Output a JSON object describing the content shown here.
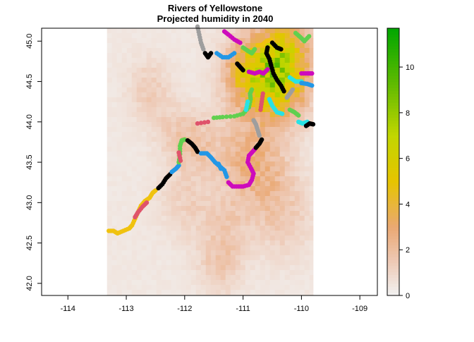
{
  "chart_data": {
    "type": "scatter",
    "title": "Rivers of Yellowstone",
    "subtitle": "Projected humidity in 2040",
    "xlabel": "",
    "ylabel": "",
    "xlim": [
      -114.45,
      -108.7
    ],
    "ylim": [
      41.85,
      45.16
    ],
    "x_ticks": [
      -114,
      -113,
      -112,
      -111,
      -110,
      -109
    ],
    "x_tick_labels": [
      "-114",
      "-113",
      "-112",
      "-111",
      "-110",
      "-109"
    ],
    "y_ticks": [
      42.0,
      42.5,
      43.0,
      43.5,
      44.0,
      44.5,
      45.0
    ],
    "y_tick_labels": [
      "42.0",
      "42.5",
      "43.0",
      "43.5",
      "44.0",
      "44.5",
      "45.0"
    ],
    "grid": false,
    "raster": {
      "name": "humidity",
      "x_range": [
        -113.33,
        -109.8
      ],
      "y_range": [
        41.85,
        45.16
      ],
      "background_value": 0.4,
      "hotspots": [
        {
          "x": -110.4,
          "y": 44.5,
          "value": 5.0,
          "spread": 0.35
        },
        {
          "x": -110.9,
          "y": 44.6,
          "value": 3.5,
          "spread": 0.3
        },
        {
          "x": -110.3,
          "y": 44.9,
          "value": 3.0,
          "spread": 0.3
        },
        {
          "x": -111.0,
          "y": 43.6,
          "value": 1.6,
          "spread": 0.35
        },
        {
          "x": -110.6,
          "y": 43.3,
          "value": 1.3,
          "spread": 0.35
        },
        {
          "x": -111.8,
          "y": 43.7,
          "value": 1.3,
          "spread": 0.25
        },
        {
          "x": -110.3,
          "y": 42.8,
          "value": 0.9,
          "spread": 0.35
        },
        {
          "x": -112.0,
          "y": 43.0,
          "value": 0.8,
          "spread": 0.3
        },
        {
          "x": -111.3,
          "y": 42.7,
          "value": 1.0,
          "spread": 0.3
        },
        {
          "x": -111.4,
          "y": 42.2,
          "value": 1.0,
          "spread": 0.25
        },
        {
          "x": -112.6,
          "y": 44.4,
          "value": 1.0,
          "spread": 0.25
        },
        {
          "x": -112.2,
          "y": 43.9,
          "value": 0.8,
          "spread": 0.25
        }
      ]
    },
    "colorbar": {
      "min": 0,
      "max": 11.7,
      "ticks": [
        0,
        2,
        4,
        6,
        8,
        10
      ],
      "tick_labels": [
        "0",
        "2",
        "4",
        "6",
        "8",
        "10"
      ],
      "stops": [
        {
          "value": 0,
          "color": "#f2f2f2"
        },
        {
          "value": 1.5,
          "color": "#eec9b5"
        },
        {
          "value": 3.0,
          "color": "#eaa873"
        },
        {
          "value": 5.0,
          "color": "#e6c400"
        },
        {
          "value": 7.0,
          "color": "#c2d600"
        },
        {
          "value": 9.0,
          "color": "#6bbd00"
        },
        {
          "value": 11.7,
          "color": "#00a600"
        }
      ]
    },
    "series": [
      {
        "color": "#f0c20f",
        "points": [
          [
            -113.3,
            42.65
          ],
          [
            -113.22,
            42.65
          ],
          [
            -113.15,
            42.62
          ],
          [
            -113.05,
            42.65
          ],
          [
            -112.95,
            42.68
          ],
          [
            -112.9,
            42.72
          ],
          [
            -112.85,
            42.8
          ],
          [
            -112.8,
            42.88
          ],
          [
            -112.75,
            42.96
          ],
          [
            -112.68,
            43.02
          ],
          [
            -112.6,
            43.06
          ],
          [
            -112.55,
            43.12
          ],
          [
            -112.5,
            43.15
          ]
        ]
      },
      {
        "color": "#df536b",
        "points": [
          [
            -112.85,
            42.82
          ],
          [
            -112.8,
            42.88
          ],
          [
            -112.72,
            42.95
          ],
          [
            -112.65,
            43.0
          ]
        ]
      },
      {
        "color": "#000000",
        "points": [
          [
            -112.45,
            43.18
          ],
          [
            -112.38,
            43.23
          ],
          [
            -112.32,
            43.3
          ],
          [
            -112.25,
            43.35
          ]
        ]
      },
      {
        "color": "#2297e6",
        "points": [
          [
            -112.22,
            43.38
          ],
          [
            -112.15,
            43.42
          ],
          [
            -112.1,
            43.46
          ]
        ]
      },
      {
        "color": "#61d04f",
        "points": [
          [
            -112.1,
            43.5
          ],
          [
            -112.08,
            43.6
          ],
          [
            -112.08,
            43.7
          ],
          [
            -112.05,
            43.77
          ],
          [
            -112.0,
            43.78
          ]
        ]
      },
      {
        "color": "#000000",
        "points": [
          [
            -111.95,
            43.77
          ],
          [
            -111.88,
            43.73
          ],
          [
            -111.82,
            43.68
          ],
          [
            -111.78,
            43.63
          ]
        ]
      },
      {
        "color": "#2297e6",
        "points": [
          [
            -111.72,
            43.61
          ],
          [
            -111.62,
            43.61
          ],
          [
            -111.55,
            43.56
          ],
          [
            -111.48,
            43.5
          ],
          [
            -111.4,
            43.45
          ],
          [
            -111.32,
            43.4
          ],
          [
            -111.28,
            43.32
          ]
        ]
      },
      {
        "color": "#cd0bbc",
        "points": [
          [
            -111.25,
            43.25
          ],
          [
            -111.18,
            43.2
          ],
          [
            -111.08,
            43.2
          ],
          [
            -111.0,
            43.2
          ],
          [
            -110.9,
            43.22
          ],
          [
            -110.85,
            43.28
          ],
          [
            -110.82,
            43.36
          ],
          [
            -110.86,
            43.42
          ],
          [
            -110.92,
            43.5
          ],
          [
            -110.9,
            43.58
          ],
          [
            -110.85,
            43.62
          ],
          [
            -110.8,
            43.66
          ]
        ]
      },
      {
        "color": "#000000",
        "points": [
          [
            -110.78,
            43.68
          ],
          [
            -110.72,
            43.73
          ],
          [
            -110.68,
            43.78
          ]
        ]
      },
      {
        "color": "#9e9e9e",
        "points": [
          [
            -110.72,
            43.83
          ],
          [
            -110.75,
            43.9
          ],
          [
            -110.78,
            43.97
          ],
          [
            -110.82,
            44.02
          ]
        ]
      },
      {
        "color": "#61d04f",
        "points": [
          [
            -111.5,
            44.05
          ],
          [
            -111.35,
            44.06
          ],
          [
            -111.15,
            44.07
          ],
          [
            -111.0,
            44.1
          ],
          [
            -110.9,
            44.18
          ],
          [
            -110.87,
            44.28
          ],
          [
            -110.88,
            44.35
          ],
          [
            -110.85,
            44.4
          ]
        ]
      },
      {
        "color": "#df536b",
        "points": [
          [
            -111.6,
            44.0
          ],
          [
            -111.78,
            43.98
          ]
        ]
      },
      {
        "color": "#28e2e5",
        "points": [
          [
            -110.95,
            44.15
          ],
          [
            -110.92,
            44.25
          ]
        ]
      },
      {
        "color": "#df536b",
        "points": [
          [
            -110.7,
            44.15
          ],
          [
            -110.68,
            44.25
          ],
          [
            -110.66,
            44.35
          ]
        ]
      },
      {
        "color": "#28e2e5",
        "points": [
          [
            -110.55,
            44.28
          ],
          [
            -110.5,
            44.2
          ],
          [
            -110.42,
            44.12
          ],
          [
            -110.33,
            44.1
          ]
        ]
      },
      {
        "color": "#000000",
        "points": [
          [
            -110.3,
            44.38
          ],
          [
            -110.35,
            44.45
          ],
          [
            -110.42,
            44.52
          ],
          [
            -110.48,
            44.6
          ],
          [
            -110.52,
            44.7
          ],
          [
            -110.55,
            44.78
          ],
          [
            -110.6,
            44.85
          ],
          [
            -110.58,
            44.92
          ]
        ]
      },
      {
        "color": "#9e9e9e",
        "points": [
          [
            -111.78,
            45.18
          ],
          [
            -111.75,
            45.08
          ],
          [
            -111.72,
            44.98
          ],
          [
            -111.68,
            44.9
          ]
        ]
      },
      {
        "color": "#000000",
        "points": [
          [
            -111.65,
            44.85
          ],
          [
            -111.6,
            44.8
          ],
          [
            -111.55,
            44.85
          ]
        ]
      },
      {
        "color": "#2297e6",
        "points": [
          [
            -111.45,
            44.85
          ],
          [
            -111.35,
            44.8
          ],
          [
            -111.25,
            44.8
          ],
          [
            -111.15,
            44.85
          ]
        ]
      },
      {
        "color": "#cd0bbc",
        "points": [
          [
            -111.32,
            45.12
          ],
          [
            -111.25,
            45.08
          ],
          [
            -111.15,
            45.02
          ],
          [
            -111.05,
            44.98
          ]
        ]
      },
      {
        "color": "#61d04f",
        "points": [
          [
            -111.0,
            44.92
          ],
          [
            -110.92,
            44.88
          ],
          [
            -110.85,
            44.85
          ],
          [
            -110.8,
            44.9
          ]
        ]
      },
      {
        "color": "#f0c20f",
        "points": [
          [
            -110.75,
            44.95
          ],
          [
            -110.68,
            44.95
          ],
          [
            -110.6,
            45.0
          ],
          [
            -110.52,
            45.02
          ]
        ]
      },
      {
        "color": "#cd0bbc",
        "points": [
          [
            -110.9,
            44.62
          ],
          [
            -110.8,
            44.6
          ],
          [
            -110.72,
            44.62
          ],
          [
            -110.65,
            44.6
          ],
          [
            -110.58,
            44.65
          ]
        ]
      },
      {
        "color": "#000000",
        "points": [
          [
            -111.1,
            44.72
          ],
          [
            -111.05,
            44.68
          ],
          [
            -111.0,
            44.64
          ]
        ]
      },
      {
        "color": "#000000",
        "points": [
          [
            -110.5,
            44.98
          ],
          [
            -110.42,
            44.92
          ],
          [
            -110.35,
            44.9
          ]
        ]
      },
      {
        "color": "#28e2e5",
        "points": [
          [
            -110.2,
            44.55
          ],
          [
            -110.1,
            44.5
          ],
          [
            -110.0,
            44.5
          ]
        ]
      },
      {
        "color": "#cd0bbc",
        "points": [
          [
            -110.0,
            44.6
          ],
          [
            -109.9,
            44.6
          ],
          [
            -109.82,
            44.6
          ]
        ]
      },
      {
        "color": "#2297e6",
        "points": [
          [
            -110.0,
            44.48
          ],
          [
            -109.9,
            44.47
          ],
          [
            -109.82,
            44.45
          ]
        ]
      },
      {
        "color": "#61d04f",
        "points": [
          [
            -110.1,
            45.1
          ],
          [
            -110.02,
            45.05
          ],
          [
            -109.95,
            45.0
          ],
          [
            -109.87,
            45.06
          ]
        ]
      },
      {
        "color": "#61d04f",
        "points": [
          [
            -110.2,
            44.15
          ],
          [
            -110.12,
            44.12
          ],
          [
            -110.05,
            44.08
          ]
        ]
      },
      {
        "color": "#28e2e5",
        "points": [
          [
            -110.05,
            44.0
          ],
          [
            -109.98,
            43.98
          ],
          [
            -109.9,
            44.0
          ]
        ]
      },
      {
        "color": "#000000",
        "points": [
          [
            -109.92,
            43.95
          ],
          [
            -109.86,
            43.98
          ],
          [
            -109.8,
            43.97
          ]
        ]
      },
      {
        "color": "#9e9e9e",
        "points": [
          [
            -110.25,
            44.3
          ],
          [
            -110.2,
            44.35
          ],
          [
            -110.15,
            44.4
          ]
        ]
      },
      {
        "color": "#df536b",
        "points": [
          [
            -112.1,
            43.62
          ],
          [
            -112.07,
            43.52
          ]
        ]
      },
      {
        "color": "#2297e6",
        "points": [
          [
            -111.42,
            43.48
          ],
          [
            -111.38,
            43.42
          ]
        ]
      }
    ]
  }
}
